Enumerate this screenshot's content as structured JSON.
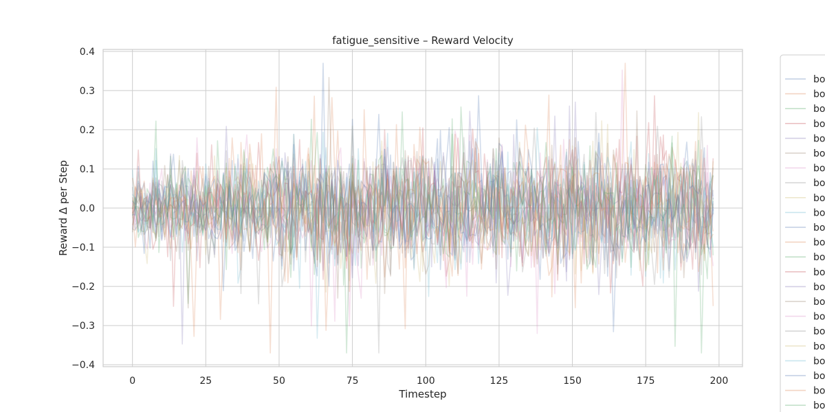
{
  "chart_data": {
    "type": "line",
    "title": "fatigue_sensitive – Reward Velocity",
    "xlabel": "Timestep",
    "ylabel": "Reward Δ per Step",
    "xlim": [
      -10,
      208
    ],
    "ylim": [
      -0.405,
      0.405
    ],
    "xticks": [
      0,
      25,
      50,
      75,
      100,
      125,
      150,
      175,
      200
    ],
    "yticks": [
      -0.4,
      -0.3,
      -0.2,
      -0.1,
      0.0,
      0.1,
      0.2,
      0.3,
      0.4
    ],
    "ytick_labels": [
      "−0.4",
      "−0.3",
      "−0.2",
      "−0.1",
      "0.0",
      "0.1",
      "0.2",
      "0.3",
      "0.4"
    ],
    "grid": true,
    "legend_position": "right, outside plot (truncated)",
    "line_opacity": 0.25,
    "x_range": [
      0,
      198
    ],
    "series_summary": {
      "count_visible_in_legend": 23,
      "typical_band": [
        -0.12,
        0.12
      ],
      "peak_max": 0.37,
      "peak_min": -0.37
    },
    "legend_entries": [
      "bo",
      "bo",
      "bo",
      "bo",
      "bo",
      "bo",
      "bo",
      "bo",
      "bo",
      "bo",
      "bo",
      "bo",
      "bo",
      "bo",
      "bo",
      "bo",
      "bo",
      "bo",
      "bo",
      "bo",
      "bo",
      "bo",
      "bo"
    ],
    "series_colors": [
      "#4c72b0",
      "#dd8452",
      "#55a868",
      "#c44e52",
      "#8172b3",
      "#937860",
      "#da8bc3",
      "#8c8c8c",
      "#ccb974",
      "#64b5cd",
      "#4c72b0",
      "#dd8452",
      "#55a868",
      "#c44e52",
      "#8172b3",
      "#937860",
      "#da8bc3",
      "#8c8c8c",
      "#ccb974",
      "#64b5cd",
      "#4c72b0",
      "#dd8452",
      "#55a868"
    ]
  }
}
